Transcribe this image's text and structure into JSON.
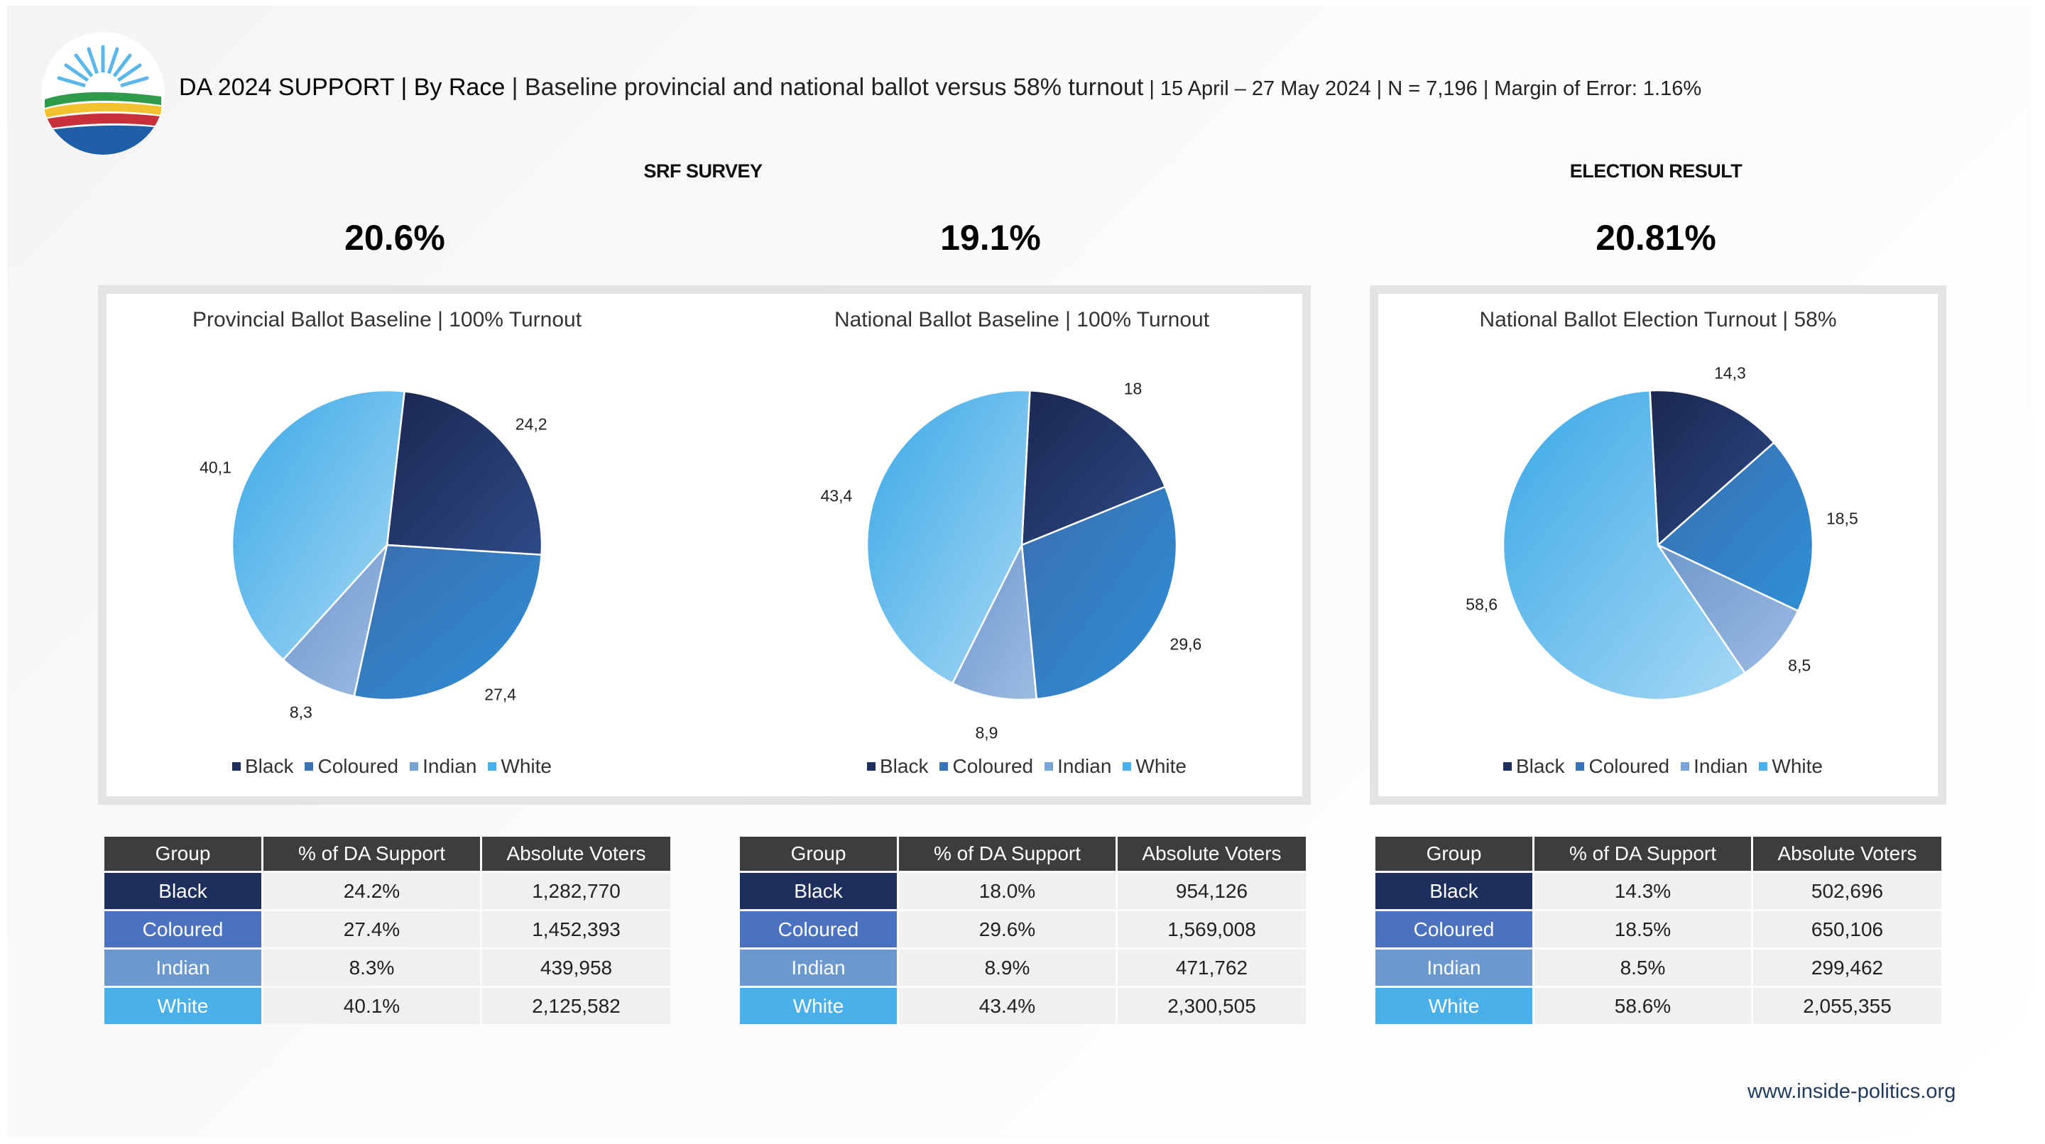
{
  "header": {
    "title_bold": "DA 2024 SUPPORT | By Race",
    "title_rest": " | Baseline provincial and national ballot versus 58% turnout",
    "title_meta": " | 15 April – 27 May 2024 | N = 7,196 | Margin of Error: 1.16%"
  },
  "sections": {
    "srf_label": "SRF SURVEY",
    "election_label": "ELECTION RESULT"
  },
  "headline_values": [
    "20.6%",
    "19.1%",
    "20.81%"
  ],
  "legend": {
    "items": [
      "Black",
      "Coloured",
      "Indian",
      "White"
    ],
    "colors": [
      "#1e2f5e",
      "#3b73b9",
      "#7aa3d6",
      "#48b0ea"
    ]
  },
  "group_colors": [
    "#1e2f5e",
    "#4a72c0",
    "#6b98cf",
    "#49b0ea"
  ],
  "chart_data": [
    {
      "type": "pie",
      "title": "Provincial Ballot Baseline | 100% Turnout",
      "categories": [
        "Black",
        "Coloured",
        "Indian",
        "White"
      ],
      "values": [
        24.2,
        27.4,
        8.3,
        40.1
      ],
      "labels": [
        "24,2",
        "27,4",
        "8,3",
        "40,1"
      ],
      "legend": "bottom"
    },
    {
      "type": "pie",
      "title": "National Ballot Baseline | 100% Turnout",
      "categories": [
        "Black",
        "Coloured",
        "Indian",
        "White"
      ],
      "values": [
        18.0,
        29.6,
        8.9,
        43.4
      ],
      "labels": [
        "18",
        "29,6",
        "8,9",
        "43,4"
      ],
      "legend": "bottom"
    },
    {
      "type": "pie",
      "title": "National Ballot Election Turnout | 58%",
      "categories": [
        "Black",
        "Coloured",
        "Indian",
        "White"
      ],
      "values": [
        14.3,
        18.5,
        8.5,
        58.6
      ],
      "labels": [
        "14,3",
        "18,5",
        "8,5",
        "58,6"
      ],
      "legend": "bottom"
    }
  ],
  "tables": [
    {
      "headers": [
        "Group",
        "% of DA Support",
        "Absolute Voters"
      ],
      "rows": [
        [
          "Black",
          "24.2%",
          "1,282,770"
        ],
        [
          "Coloured",
          "27.4%",
          "1,452,393"
        ],
        [
          "Indian",
          "8.3%",
          "439,958"
        ],
        [
          "White",
          "40.1%",
          "2,125,582"
        ]
      ]
    },
    {
      "headers": [
        "Group",
        "% of DA Support",
        "Absolute Voters"
      ],
      "rows": [
        [
          "Black",
          "18.0%",
          "954,126"
        ],
        [
          "Coloured",
          "29.6%",
          "1,569,008"
        ],
        [
          "Indian",
          "8.9%",
          "471,762"
        ],
        [
          "White",
          "43.4%",
          "2,300,505"
        ]
      ]
    },
    {
      "headers": [
        "Group",
        "% of DA Support",
        "Absolute Voters"
      ],
      "rows": [
        [
          "Black",
          "14.3%",
          "502,696"
        ],
        [
          "Coloured",
          "18.5%",
          "650,106"
        ],
        [
          "Indian",
          "8.5%",
          "299,462"
        ],
        [
          "White",
          "58.6%",
          "2,055,355"
        ]
      ]
    }
  ],
  "footer": {
    "url": "www.inside-politics.org"
  }
}
